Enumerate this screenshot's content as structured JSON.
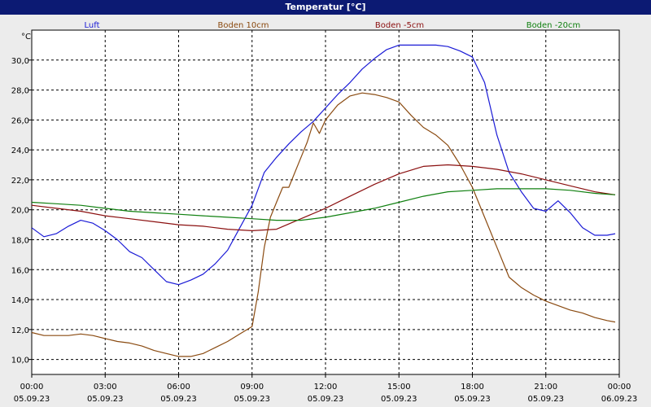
{
  "window": {
    "title": "Temperatur [°C]"
  },
  "colors": {
    "titlebar": "#0c1a73",
    "frame": "#ececec",
    "grid": "#000000",
    "Luft": "#1a1ad6",
    "Boden 10cm": "#8a4a10",
    "Boden -5cm": "#8b1010",
    "Boden -20cm": "#108010"
  },
  "chart_data": {
    "type": "line",
    "title": "Temperatur [°C]",
    "ylabel": "°C",
    "ylim": [
      9.0,
      32.0
    ],
    "xlim": [
      "05.09.23 00:00",
      "06.09.23 00:00"
    ],
    "grid": true,
    "legend_position": "top",
    "yticks": [
      "10,0",
      "12,0",
      "14,0",
      "16,0",
      "18,0",
      "20,0",
      "22,0",
      "24,0",
      "26,0",
      "28,0",
      "30,0"
    ],
    "xticks": [
      {
        "time": "00:00",
        "date": "05.09.23"
      },
      {
        "time": "03:00",
        "date": "05.09.23"
      },
      {
        "time": "06:00",
        "date": "05.09.23"
      },
      {
        "time": "09:00",
        "date": "05.09.23"
      },
      {
        "time": "12:00",
        "date": "05.09.23"
      },
      {
        "time": "15:00",
        "date": "05.09.23"
      },
      {
        "time": "18:00",
        "date": "05.09.23"
      },
      {
        "time": "21:00",
        "date": "05.09.23"
      },
      {
        "time": "00:00",
        "date": "06.09.23"
      }
    ],
    "series": [
      {
        "name": "Luft",
        "x": [
          "00:00",
          "00:30",
          "01:00",
          "01:30",
          "02:00",
          "02:30",
          "03:00",
          "03:30",
          "04:00",
          "04:30",
          "05:00",
          "05:30",
          "06:00",
          "06:30",
          "07:00",
          "07:30",
          "08:00",
          "08:30",
          "09:00",
          "09:30",
          "10:00",
          "10:30",
          "11:00",
          "11:30",
          "12:00",
          "12:30",
          "13:00",
          "13:30",
          "14:00",
          "14:30",
          "15:00",
          "15:30",
          "16:00",
          "16:30",
          "17:00",
          "17:30",
          "18:00",
          "18:30",
          "19:00",
          "19:30",
          "20:00",
          "20:30",
          "21:00",
          "21:30",
          "22:00",
          "22:30",
          "23:00",
          "23:30",
          "23:50"
        ],
        "y": [
          18.8,
          18.2,
          18.4,
          18.9,
          19.3,
          19.1,
          18.6,
          18.0,
          17.2,
          16.8,
          16.0,
          15.2,
          15.0,
          15.3,
          15.7,
          16.4,
          17.3,
          18.8,
          20.3,
          22.5,
          23.5,
          24.4,
          25.2,
          25.9,
          26.8,
          27.7,
          28.5,
          29.4,
          30.1,
          30.7,
          31.0,
          31.0,
          31.0,
          31.0,
          30.9,
          30.6,
          30.2,
          28.5,
          25.0,
          22.5,
          21.2,
          20.1,
          19.9,
          20.6,
          19.8,
          18.8,
          18.3,
          18.3,
          18.4
        ]
      },
      {
        "name": "Boden 10cm",
        "x": [
          "00:00",
          "00:30",
          "01:00",
          "01:30",
          "02:00",
          "02:30",
          "03:00",
          "03:30",
          "04:00",
          "04:30",
          "05:00",
          "05:30",
          "06:00",
          "06:30",
          "07:00",
          "07:30",
          "08:00",
          "08:30",
          "09:00",
          "09:15",
          "09:30",
          "09:45",
          "10:00",
          "10:15",
          "10:30",
          "11:00",
          "11:15",
          "11:30",
          "11:45",
          "12:00",
          "12:30",
          "13:00",
          "13:30",
          "14:00",
          "14:30",
          "15:00",
          "15:30",
          "16:00",
          "16:30",
          "17:00",
          "17:30",
          "18:00",
          "18:30",
          "19:00",
          "19:30",
          "20:00",
          "20:30",
          "21:00",
          "21:30",
          "22:00",
          "22:30",
          "23:00",
          "23:30",
          "23:50"
        ],
        "y": [
          11.8,
          11.6,
          11.6,
          11.6,
          11.7,
          11.6,
          11.4,
          11.2,
          11.1,
          10.9,
          10.6,
          10.4,
          10.2,
          10.2,
          10.4,
          10.8,
          11.2,
          11.7,
          12.2,
          14.5,
          17.5,
          19.5,
          20.5,
          21.5,
          21.5,
          23.5,
          24.5,
          25.8,
          25.1,
          26.0,
          27.0,
          27.6,
          27.8,
          27.7,
          27.5,
          27.2,
          26.3,
          25.5,
          25.0,
          24.3,
          23.0,
          21.5,
          19.5,
          17.5,
          15.5,
          14.8,
          14.3,
          13.9,
          13.6,
          13.3,
          13.1,
          12.8,
          12.6,
          12.5
        ]
      },
      {
        "name": "Boden -5cm",
        "x": [
          "00:00",
          "01:00",
          "02:00",
          "03:00",
          "04:00",
          "05:00",
          "06:00",
          "07:00",
          "08:00",
          "09:00",
          "10:00",
          "11:00",
          "12:00",
          "13:00",
          "14:00",
          "15:00",
          "16:00",
          "17:00",
          "18:00",
          "19:00",
          "20:00",
          "21:00",
          "22:00",
          "23:00",
          "23:50"
        ],
        "y": [
          20.3,
          20.1,
          19.9,
          19.6,
          19.4,
          19.2,
          19.0,
          18.9,
          18.7,
          18.6,
          18.7,
          19.4,
          20.1,
          20.9,
          21.7,
          22.4,
          22.9,
          23.0,
          22.9,
          22.7,
          22.4,
          22.0,
          21.6,
          21.2,
          21.0
        ]
      },
      {
        "name": "Boden -20cm",
        "x": [
          "00:00",
          "01:00",
          "02:00",
          "03:00",
          "04:00",
          "05:00",
          "06:00",
          "07:00",
          "08:00",
          "09:00",
          "10:00",
          "11:00",
          "12:00",
          "13:00",
          "14:00",
          "15:00",
          "16:00",
          "17:00",
          "18:00",
          "19:00",
          "20:00",
          "21:00",
          "22:00",
          "23:00",
          "23:50"
        ],
        "y": [
          20.5,
          20.4,
          20.3,
          20.1,
          19.9,
          19.8,
          19.7,
          19.6,
          19.5,
          19.4,
          19.3,
          19.3,
          19.5,
          19.8,
          20.1,
          20.5,
          20.9,
          21.2,
          21.3,
          21.4,
          21.4,
          21.4,
          21.3,
          21.1,
          21.0
        ]
      }
    ]
  }
}
